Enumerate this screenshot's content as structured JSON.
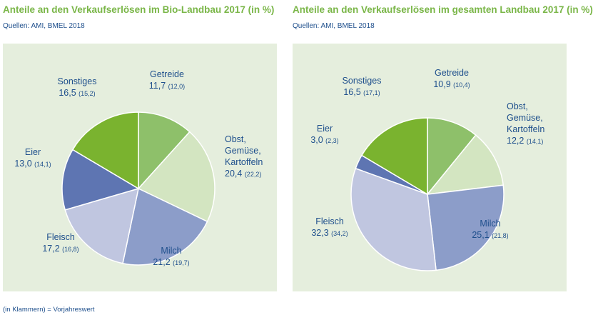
{
  "colors": {
    "title": "#7ab648",
    "text": "#1e4f8c",
    "panel": "#e5eedd",
    "slice_border": "#ffffff"
  },
  "footnote": "(in Klammern) = Vorjahreswert",
  "chart_data": [
    {
      "type": "pie",
      "title": "Anteile an den Verkaufserlösen im Bio-Landbau 2017 (in %)",
      "source": "Quellen: AMI, BMEL 2018",
      "start_angle_deg": 0,
      "direction": "clockwise",
      "slices": [
        {
          "name": "Getreide",
          "value": 11.7,
          "value_label": "11,7",
          "previous_label": "(12,0)",
          "color": "#8ec06a"
        },
        {
          "name": "Obst, Gemüse, Kartoffeln",
          "name_lines": [
            "Obst,",
            "Gemüse,",
            "Kartoffeln"
          ],
          "value": 20.4,
          "value_label": "20,4",
          "previous_label": "(22,2)",
          "color": "#d3e5c1"
        },
        {
          "name": "Milch",
          "value": 21.2,
          "value_label": "21,2",
          "previous_label": "(19,7)",
          "color": "#8c9dc9"
        },
        {
          "name": "Fleisch",
          "value": 17.2,
          "value_label": "17,2",
          "previous_label": "(16,8)",
          "color": "#c0c6e0"
        },
        {
          "name": "Eier",
          "value": 13.0,
          "value_label": "13,0",
          "previous_label": "(14,1)",
          "color": "#5e75b2"
        },
        {
          "name": "Sonstiges",
          "value": 16.5,
          "value_label": "16,5",
          "previous_label": "(15,2)",
          "color": "#7ab32f"
        }
      ]
    },
    {
      "type": "pie",
      "title": "Anteile an den Verkaufserlösen im gesamten Landbau 2017 (in %)",
      "source": "Quellen: AMI, BMEL 2018",
      "start_angle_deg": 0,
      "direction": "clockwise",
      "slices": [
        {
          "name": "Getreide",
          "value": 10.9,
          "value_label": "10,9",
          "previous_label": "(10,4)",
          "color": "#8ec06a"
        },
        {
          "name": "Obst, Gemüse, Kartoffeln",
          "name_lines": [
            "Obst,",
            "Gemüse,",
            "Kartoffeln"
          ],
          "value": 12.2,
          "value_label": "12,2",
          "previous_label": "(14,1)",
          "color": "#d3e5c1"
        },
        {
          "name": "Milch",
          "value": 25.1,
          "value_label": "25,1",
          "previous_label": "(21,8)",
          "color": "#8c9dc9"
        },
        {
          "name": "Fleisch",
          "value": 32.3,
          "value_label": "32,3",
          "previous_label": "(34,2)",
          "color": "#c0c6e0"
        },
        {
          "name": "Eier",
          "value": 3.0,
          "value_label": "3,0",
          "previous_label": "(2,3)",
          "color": "#5e75b2"
        },
        {
          "name": "Sonstiges",
          "value": 16.5,
          "value_label": "16,5",
          "previous_label": "(17,1)",
          "color": "#7ab32f"
        }
      ]
    }
  ]
}
